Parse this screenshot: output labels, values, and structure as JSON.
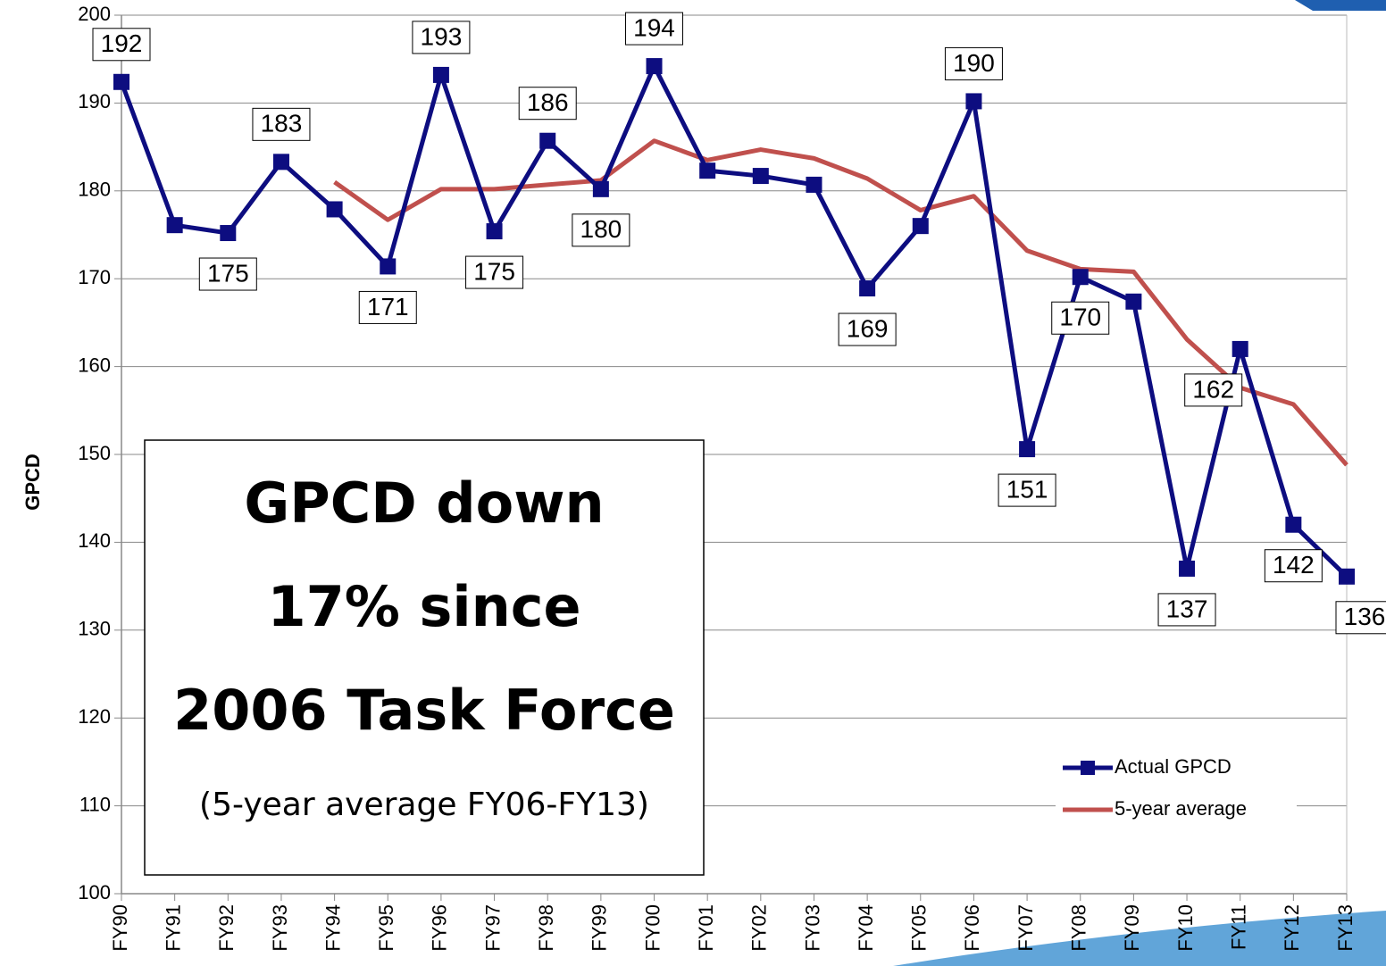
{
  "chart_data": {
    "type": "line",
    "y_label": "GPCD",
    "categories": [
      "FY90",
      "FY91",
      "FY92",
      "FY93",
      "FY94",
      "FY95",
      "FY96",
      "FY97",
      "FY98",
      "FY99",
      "FY00",
      "FY01",
      "FY02",
      "FY03",
      "FY04",
      "FY05",
      "FY06",
      "FY07",
      "FY08",
      "FY09",
      "FY10",
      "FY11",
      "FY12",
      "FY13"
    ],
    "series": [
      {
        "name": "Actual GPCD",
        "color": "#0d0d80",
        "marker": "square",
        "values": [
          192.4,
          176.1,
          175.2,
          183.3,
          177.9,
          171.4,
          193.2,
          175.4,
          185.7,
          180.2,
          194.2,
          182.3,
          181.7,
          180.7,
          168.9,
          176.0,
          190.2,
          150.6,
          170.2,
          167.4,
          137.0,
          162.0,
          142.0,
          136.1
        ],
        "value_labels": [
          "192",
          null,
          "175",
          "183",
          null,
          "171",
          "193",
          "175",
          "186",
          "180",
          "194",
          null,
          null,
          null,
          "169",
          null,
          "190",
          "151",
          "170",
          null,
          "137",
          "162",
          "142",
          "136"
        ]
      },
      {
        "name": "5-year average",
        "color": "#c0504d",
        "values": [
          null,
          null,
          null,
          null,
          181.0,
          176.7,
          180.2,
          180.2,
          180.7,
          181.2,
          185.7,
          183.5,
          184.7,
          183.7,
          181.4,
          177.8,
          179.4,
          173.2,
          171.1,
          170.8,
          163.1,
          157.6,
          155.7,
          148.8
        ]
      }
    ],
    "ylim": [
      100,
      200
    ],
    "yticks": [
      100,
      110,
      120,
      130,
      140,
      150,
      160,
      170,
      180,
      190,
      200
    ],
    "grid": true,
    "legend": "lower right",
    "annotation": {
      "lines": [
        "GPCD down",
        "17% since",
        "2006 Task Force"
      ],
      "note": "(5-year average FY06-FY13)"
    }
  }
}
